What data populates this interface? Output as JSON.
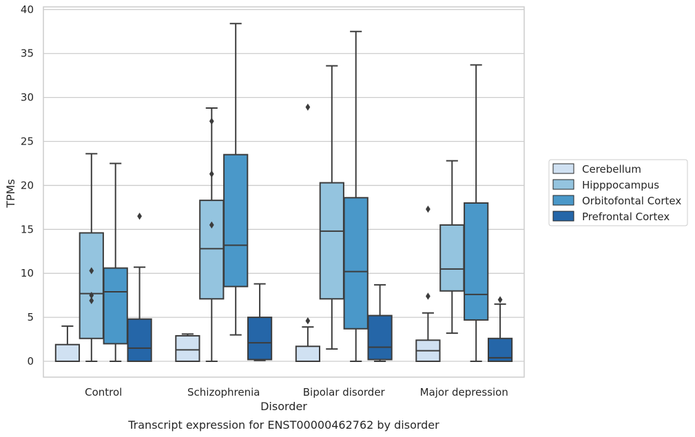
{
  "caption": "Transcript expression for ENST00000462762 by disorder",
  "chart_data": {
    "type": "boxplot",
    "title": "",
    "xlabel": "Disorder",
    "ylabel": "TPMs",
    "ylim": [
      -1.8,
      40.3
    ],
    "yticks": [
      0,
      5,
      10,
      15,
      20,
      25,
      30,
      35,
      40
    ],
    "grid": "horizontal",
    "legend_position": "right",
    "categories": [
      "Control",
      "Schizophrenia",
      "Bipolar disorder",
      "Major depression"
    ],
    "series": [
      {
        "name": "Cerebellum",
        "color": "#d0e1f2",
        "boxes": [
          {
            "whisker_low": 0,
            "q1": 0,
            "median": 0,
            "q3": 1.9,
            "whisker_high": 4.0,
            "outliers": []
          },
          {
            "whisker_low": 0,
            "q1": 0,
            "median": 1.3,
            "q3": 2.9,
            "whisker_high": 3.1,
            "outliers": []
          },
          {
            "whisker_low": 0,
            "q1": 0,
            "median": 0,
            "q3": 1.7,
            "whisker_high": 3.9,
            "outliers": [
              4.6,
              28.9
            ]
          },
          {
            "whisker_low": 0,
            "q1": 0,
            "median": 1.2,
            "q3": 2.4,
            "whisker_high": 5.5,
            "outliers": [
              7.4,
              17.3
            ]
          }
        ]
      },
      {
        "name": "Hipppocampus",
        "color": "#94c4df",
        "boxes": [
          {
            "whisker_low": 0,
            "q1": 2.6,
            "median": 7.7,
            "q3": 14.6,
            "whisker_high": 23.6,
            "outliers": [
              6.9,
              7.5,
              10.3
            ]
          },
          {
            "whisker_low": 0,
            "q1": 7.1,
            "median": 12.8,
            "q3": 18.3,
            "whisker_high": 28.8,
            "outliers": [
              15.5,
              21.3,
              27.3
            ]
          },
          {
            "whisker_low": 1.4,
            "q1": 7.1,
            "median": 14.8,
            "q3": 20.3,
            "whisker_high": 33.6,
            "outliers": []
          },
          {
            "whisker_low": 3.2,
            "q1": 8.0,
            "median": 10.5,
            "q3": 15.5,
            "whisker_high": 22.8,
            "outliers": []
          }
        ]
      },
      {
        "name": "Orbitofontal Cortex",
        "color": "#4a98c9",
        "boxes": [
          {
            "whisker_low": 0,
            "q1": 2.0,
            "median": 7.9,
            "q3": 10.6,
            "whisker_high": 22.5,
            "outliers": []
          },
          {
            "whisker_low": 3.0,
            "q1": 8.5,
            "median": 13.2,
            "q3": 23.5,
            "whisker_high": 38.4,
            "outliers": []
          },
          {
            "whisker_low": 0,
            "q1": 3.7,
            "median": 10.2,
            "q3": 18.6,
            "whisker_high": 37.5,
            "outliers": []
          },
          {
            "whisker_low": 0,
            "q1": 4.7,
            "median": 7.6,
            "q3": 18.0,
            "whisker_high": 33.7,
            "outliers": []
          }
        ]
      },
      {
        "name": "Prefrontal Cortex",
        "color": "#2566a8",
        "boxes": [
          {
            "whisker_low": 0,
            "q1": 0,
            "median": 1.5,
            "q3": 4.8,
            "whisker_high": 10.7,
            "outliers": [
              16.5
            ]
          },
          {
            "whisker_low": 0.1,
            "q1": 0.2,
            "median": 2.1,
            "q3": 5.0,
            "whisker_high": 8.8,
            "outliers": []
          },
          {
            "whisker_low": 0,
            "q1": 0.2,
            "median": 1.6,
            "q3": 5.2,
            "whisker_high": 8.7,
            "outliers": []
          },
          {
            "whisker_low": 0,
            "q1": 0,
            "median": 0.4,
            "q3": 2.6,
            "whisker_high": 6.5,
            "outliers": [
              7.0
            ]
          }
        ]
      }
    ]
  }
}
